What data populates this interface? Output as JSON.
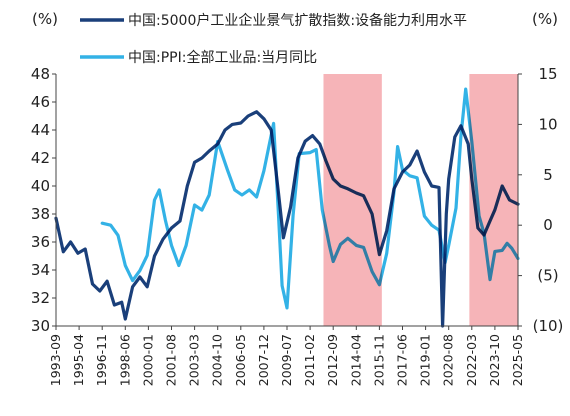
{
  "chart_data": {
    "type": "line",
    "y_left": {
      "unit": "(%)",
      "min": 30,
      "max": 48,
      "ticks": [
        "48",
        "46",
        "44",
        "42",
        "40",
        "38",
        "36",
        "34",
        "32",
        "30"
      ]
    },
    "y_right": {
      "unit": "(%)",
      "min": -10,
      "max": 15,
      "ticks": [
        "15",
        "10",
        "5",
        "0",
        "(5)",
        "(10)"
      ]
    },
    "x_axis": {
      "range": [
        "1993-09",
        "2025-05"
      ],
      "tick_labels": [
        "1993-09",
        "1995-04",
        "1996-11",
        "1998-06",
        "2000-01",
        "2001-08",
        "2003-03",
        "2004-10",
        "2006-05",
        "2007-12",
        "2009-07",
        "2011-02",
        "2012-09",
        "2014-04",
        "2015-11",
        "2017-06",
        "2019-01",
        "2020-08",
        "2022-03",
        "2023-10",
        "2025-05"
      ]
    },
    "shaded_periods": [
      [
        "2012-01",
        "2016-01"
      ],
      [
        "2022-01",
        "2025-05"
      ]
    ],
    "shade_color": "#f4a7ab",
    "grid": false,
    "legend_position": "top",
    "series": [
      {
        "name": "中国:5000户工业企业景气扩散指数:设备能力利用水平",
        "axis": "left",
        "color": "#1a3f7a",
        "points": [
          [
            "1993-09",
            37.7
          ],
          [
            "1994-03",
            35.3
          ],
          [
            "1994-09",
            36.0
          ],
          [
            "1995-03",
            35.2
          ],
          [
            "1995-09",
            35.5
          ],
          [
            "1996-03",
            33.0
          ],
          [
            "1996-09",
            32.5
          ],
          [
            "1997-03",
            33.2
          ],
          [
            "1997-09",
            31.5
          ],
          [
            "1998-03",
            31.7
          ],
          [
            "1998-06",
            30.5
          ],
          [
            "1998-12",
            32.8
          ],
          [
            "1999-06",
            33.5
          ],
          [
            "1999-12",
            32.8
          ],
          [
            "2000-06",
            35.0
          ],
          [
            "2001-01",
            36.2
          ],
          [
            "2001-08",
            37.0
          ],
          [
            "2002-03",
            37.5
          ],
          [
            "2002-09",
            40.0
          ],
          [
            "2003-03",
            41.7
          ],
          [
            "2003-09",
            42.0
          ],
          [
            "2004-03",
            42.5
          ],
          [
            "2004-10",
            43.0
          ],
          [
            "2005-04",
            44.0
          ],
          [
            "2005-10",
            44.4
          ],
          [
            "2006-05",
            44.5
          ],
          [
            "2006-11",
            45.0
          ],
          [
            "2007-06",
            45.3
          ],
          [
            "2007-12",
            44.8
          ],
          [
            "2008-06",
            44.0
          ],
          [
            "2008-12",
            39.5
          ],
          [
            "2009-04",
            36.3
          ],
          [
            "2009-10",
            38.5
          ],
          [
            "2010-04",
            42.0
          ],
          [
            "2010-10",
            43.2
          ],
          [
            "2011-04",
            43.6
          ],
          [
            "2011-10",
            43.0
          ],
          [
            "2012-03",
            41.8
          ],
          [
            "2012-09",
            40.5
          ],
          [
            "2013-03",
            40.0
          ],
          [
            "2013-09",
            39.8
          ],
          [
            "2014-04",
            39.5
          ],
          [
            "2014-10",
            39.3
          ],
          [
            "2015-05",
            38.0
          ],
          [
            "2015-11",
            35.1
          ],
          [
            "2016-05",
            36.8
          ],
          [
            "2016-11",
            39.8
          ],
          [
            "2017-06",
            41.0
          ],
          [
            "2017-12",
            41.5
          ],
          [
            "2018-06",
            42.5
          ],
          [
            "2018-12",
            41.0
          ],
          [
            "2019-06",
            40.0
          ],
          [
            "2019-12",
            39.9
          ],
          [
            "2020-03",
            30.0
          ],
          [
            "2020-06",
            38.0
          ],
          [
            "2020-08",
            40.5
          ],
          [
            "2021-01",
            43.5
          ],
          [
            "2021-06",
            44.3
          ],
          [
            "2021-12",
            43.0
          ],
          [
            "2022-03",
            40.5
          ],
          [
            "2022-08",
            37.0
          ],
          [
            "2023-01",
            36.5
          ],
          [
            "2023-06",
            37.5
          ],
          [
            "2023-10",
            38.3
          ],
          [
            "2024-04",
            40.0
          ],
          [
            "2024-10",
            39.0
          ],
          [
            "2025-05",
            38.7
          ]
        ]
      },
      {
        "name": "中国:PPI:全部工业品:当月同比",
        "axis": "right",
        "color": "#33b2e6",
        "points": [
          [
            "1996-11",
            0.2
          ],
          [
            "1997-06",
            0.0
          ],
          [
            "1997-12",
            -1.0
          ],
          [
            "1998-06",
            -4.0
          ],
          [
            "1998-12",
            -5.5
          ],
          [
            "1999-06",
            -4.5
          ],
          [
            "1999-12",
            -3.0
          ],
          [
            "2000-06",
            2.5
          ],
          [
            "2000-10",
            3.5
          ],
          [
            "2001-03",
            0.5
          ],
          [
            "2001-08",
            -2.0
          ],
          [
            "2002-02",
            -4.0
          ],
          [
            "2002-08",
            -2.0
          ],
          [
            "2003-03",
            2.0
          ],
          [
            "2003-09",
            1.5
          ],
          [
            "2004-03",
            3.0
          ],
          [
            "2004-10",
            8.3
          ],
          [
            "2005-06",
            5.5
          ],
          [
            "2005-12",
            3.5
          ],
          [
            "2006-06",
            3.0
          ],
          [
            "2006-12",
            3.5
          ],
          [
            "2007-06",
            2.8
          ],
          [
            "2007-12",
            5.4
          ],
          [
            "2008-08",
            10.1
          ],
          [
            "2008-12",
            1.0
          ],
          [
            "2009-03",
            -6.0
          ],
          [
            "2009-07",
            -8.2
          ],
          [
            "2009-12",
            1.0
          ],
          [
            "2010-05",
            7.1
          ],
          [
            "2011-02",
            7.2
          ],
          [
            "2011-07",
            7.5
          ],
          [
            "2011-12",
            1.5
          ],
          [
            "2012-06",
            -2.1
          ],
          [
            "2012-09",
            -3.6
          ],
          [
            "2013-03",
            -1.9
          ],
          [
            "2013-09",
            -1.3
          ],
          [
            "2014-04",
            -2.0
          ],
          [
            "2014-10",
            -2.2
          ],
          [
            "2015-05",
            -4.6
          ],
          [
            "2015-11",
            -5.9
          ],
          [
            "2016-05",
            -2.8
          ],
          [
            "2016-11",
            3.3
          ],
          [
            "2017-02",
            7.8
          ],
          [
            "2017-06",
            5.5
          ],
          [
            "2017-12",
            4.9
          ],
          [
            "2018-06",
            4.7
          ],
          [
            "2018-12",
            0.9
          ],
          [
            "2019-06",
            0.0
          ],
          [
            "2019-12",
            -0.5
          ],
          [
            "2020-05",
            -3.7
          ],
          [
            "2020-08",
            -2.0
          ],
          [
            "2021-02",
            1.7
          ],
          [
            "2021-06",
            8.8
          ],
          [
            "2021-10",
            13.5
          ],
          [
            "2022-03",
            8.3
          ],
          [
            "2022-09",
            0.9
          ],
          [
            "2023-01",
            -0.8
          ],
          [
            "2023-06",
            -5.4
          ],
          [
            "2023-10",
            -2.6
          ],
          [
            "2024-04",
            -2.5
          ],
          [
            "2024-08",
            -1.8
          ],
          [
            "2024-12",
            -2.3
          ],
          [
            "2025-05",
            -3.3
          ]
        ]
      }
    ]
  }
}
